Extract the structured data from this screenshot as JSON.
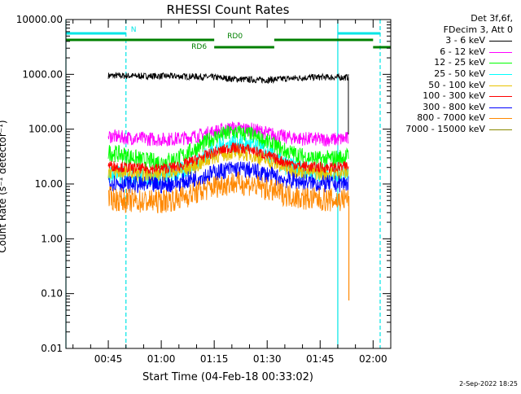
{
  "chart_data": {
    "type": "line",
    "title": "RHESSI Count Rates",
    "xlabel": "Start Time (04-Feb-18 00:33:02)",
    "ylabel": "Count Rate (s⁻¹ detector⁻¹)",
    "y_scale": "log",
    "ylim": [
      0.01,
      10000
    ],
    "y_ticks": [
      0.01,
      0.1,
      1,
      10,
      100,
      1000,
      10000
    ],
    "y_tick_labels": [
      "0.01",
      "0.10",
      "1.00",
      "10.00",
      "100.00",
      "1000.00",
      "10000.00"
    ],
    "xlim": [
      "00:33",
      "02:05"
    ],
    "x_ticks": [
      "00:45",
      "01:00",
      "01:15",
      "01:30",
      "01:45",
      "02:00"
    ],
    "grid": false,
    "legend": {
      "placement": "right",
      "header": [
        "Det 3f,6f,",
        "FDecim 3, Att 0"
      ]
    },
    "data_start": "00:45",
    "data_end": "01:53",
    "series": [
      {
        "name": "3 - 6 keV",
        "color": "#000000",
        "x": [
          "00:45",
          "00:50",
          "00:55",
          "01:00",
          "01:05",
          "01:10",
          "01:15",
          "01:20",
          "01:25",
          "01:30",
          "01:35",
          "01:40",
          "01:45",
          "01:50",
          "01:53"
        ],
        "y": [
          950,
          940,
          930,
          930,
          920,
          910,
          880,
          830,
          800,
          790,
          830,
          870,
          890,
          880,
          880
        ],
        "noise": 0.06
      },
      {
        "name": "6 - 12 keV",
        "color": "#ff00ff",
        "x": [
          "00:45",
          "00:50",
          "00:55",
          "01:00",
          "01:05",
          "01:10",
          "01:15",
          "01:20",
          "01:25",
          "01:30",
          "01:35",
          "01:40",
          "01:45",
          "01:50",
          "01:53"
        ],
        "y": [
          75,
          70,
          67,
          65,
          67,
          75,
          90,
          105,
          100,
          85,
          72,
          67,
          65,
          65,
          68
        ],
        "noise": 0.13
      },
      {
        "name": "12 - 25 keV",
        "color": "#00ff00",
        "x": [
          "00:45",
          "00:50",
          "00:55",
          "01:00",
          "01:05",
          "01:10",
          "01:15",
          "01:20",
          "01:25",
          "01:30",
          "01:35",
          "01:40",
          "01:45",
          "01:50",
          "01:53"
        ],
        "y": [
          38,
          33,
          27,
          25,
          30,
          45,
          70,
          88,
          80,
          58,
          40,
          32,
          28,
          30,
          32
        ],
        "noise": 0.16
      },
      {
        "name": "25 - 50 keV",
        "color": "#00ffff",
        "x": [
          "00:45",
          "00:50",
          "00:55",
          "01:00",
          "01:05",
          "01:10",
          "01:15",
          "01:20",
          "01:25",
          "01:30",
          "01:35",
          "01:40",
          "01:45",
          "01:50",
          "01:53"
        ],
        "y": [
          15,
          14,
          14,
          14,
          16,
          25,
          42,
          55,
          50,
          35,
          22,
          18,
          16,
          16,
          17
        ],
        "noise": 0.18
      },
      {
        "name": "50 - 100 keV",
        "color": "#e8c200",
        "x": [
          "00:45",
          "00:50",
          "00:55",
          "01:00",
          "01:05",
          "01:10",
          "01:15",
          "01:20",
          "01:25",
          "01:30",
          "01:35",
          "01:40",
          "01:45",
          "01:50",
          "01:53"
        ],
        "y": [
          17,
          16,
          15,
          15,
          17,
          22,
          32,
          38,
          35,
          27,
          20,
          17,
          16,
          16,
          17
        ],
        "noise": 0.14
      },
      {
        "name": "100 - 300 keV",
        "color": "#ff0000",
        "x": [
          "00:45",
          "00:50",
          "00:55",
          "01:00",
          "01:05",
          "01:10",
          "01:15",
          "01:20",
          "01:25",
          "01:30",
          "01:35",
          "01:40",
          "01:45",
          "01:50",
          "01:53"
        ],
        "y": [
          22,
          20,
          19,
          19,
          21,
          28,
          38,
          46,
          43,
          33,
          25,
          21,
          20,
          20,
          21
        ],
        "noise": 0.1
      },
      {
        "name": "300 - 800 keV",
        "color": "#0000ff",
        "x": [
          "00:45",
          "00:50",
          "00:55",
          "01:00",
          "01:05",
          "01:10",
          "01:15",
          "01:20",
          "01:25",
          "01:30",
          "01:35",
          "01:40",
          "01:45",
          "01:50",
          "01:53"
        ],
        "y": [
          11,
          10,
          9.5,
          9.5,
          10.5,
          13,
          16,
          19,
          18,
          15,
          12,
          11,
          10,
          10,
          10.5
        ],
        "noise": 0.16
      },
      {
        "name": "800 - 7000 keV",
        "color": "#ff8800",
        "x": [
          "00:45",
          "00:50",
          "00:55",
          "01:00",
          "01:05",
          "01:10",
          "01:15",
          "01:20",
          "01:25",
          "01:30",
          "01:35",
          "01:40",
          "01:45",
          "01:50",
          "01:53"
        ],
        "y": [
          5.5,
          5,
          4.8,
          4.8,
          5.5,
          7,
          9,
          10.5,
          10,
          8,
          6.5,
          5.5,
          5.2,
          5,
          5.5
        ],
        "noise": 0.22
      },
      {
        "name": "7000 - 15000 keV",
        "color": "#8a8a00",
        "x": [],
        "y": [],
        "noise": 0
      }
    ],
    "annotations": {
      "vertical_lines": [
        {
          "x": "00:33",
          "color": "#00e5e5",
          "style": "solid"
        },
        {
          "x": "00:50",
          "color": "#00e5e5",
          "style": "dashed"
        },
        {
          "x": "01:50",
          "color": "#00e5e5",
          "style": "solid"
        },
        {
          "x": "02:02",
          "color": "#00e5e5",
          "style": "dashed"
        }
      ],
      "bars": [
        {
          "label": "N",
          "color": "#00e5e5",
          "row": 0,
          "segments": [
            [
              "00:33",
              "00:50"
            ],
            [
              "01:50",
              "02:02"
            ]
          ]
        },
        {
          "label": "RD0",
          "color": "#008000",
          "row": 1,
          "segments": [
            [
              "00:33",
              "01:15"
            ],
            [
              "01:32",
              "02:00"
            ]
          ]
        },
        {
          "label": "RD6",
          "color": "#008000",
          "row": 2,
          "segments": [
            [
              "01:15",
              "01:32"
            ],
            [
              "02:00",
              "02:05"
            ]
          ]
        }
      ]
    }
  },
  "footer": {
    "date": "2-Sep-2022 18:25"
  }
}
